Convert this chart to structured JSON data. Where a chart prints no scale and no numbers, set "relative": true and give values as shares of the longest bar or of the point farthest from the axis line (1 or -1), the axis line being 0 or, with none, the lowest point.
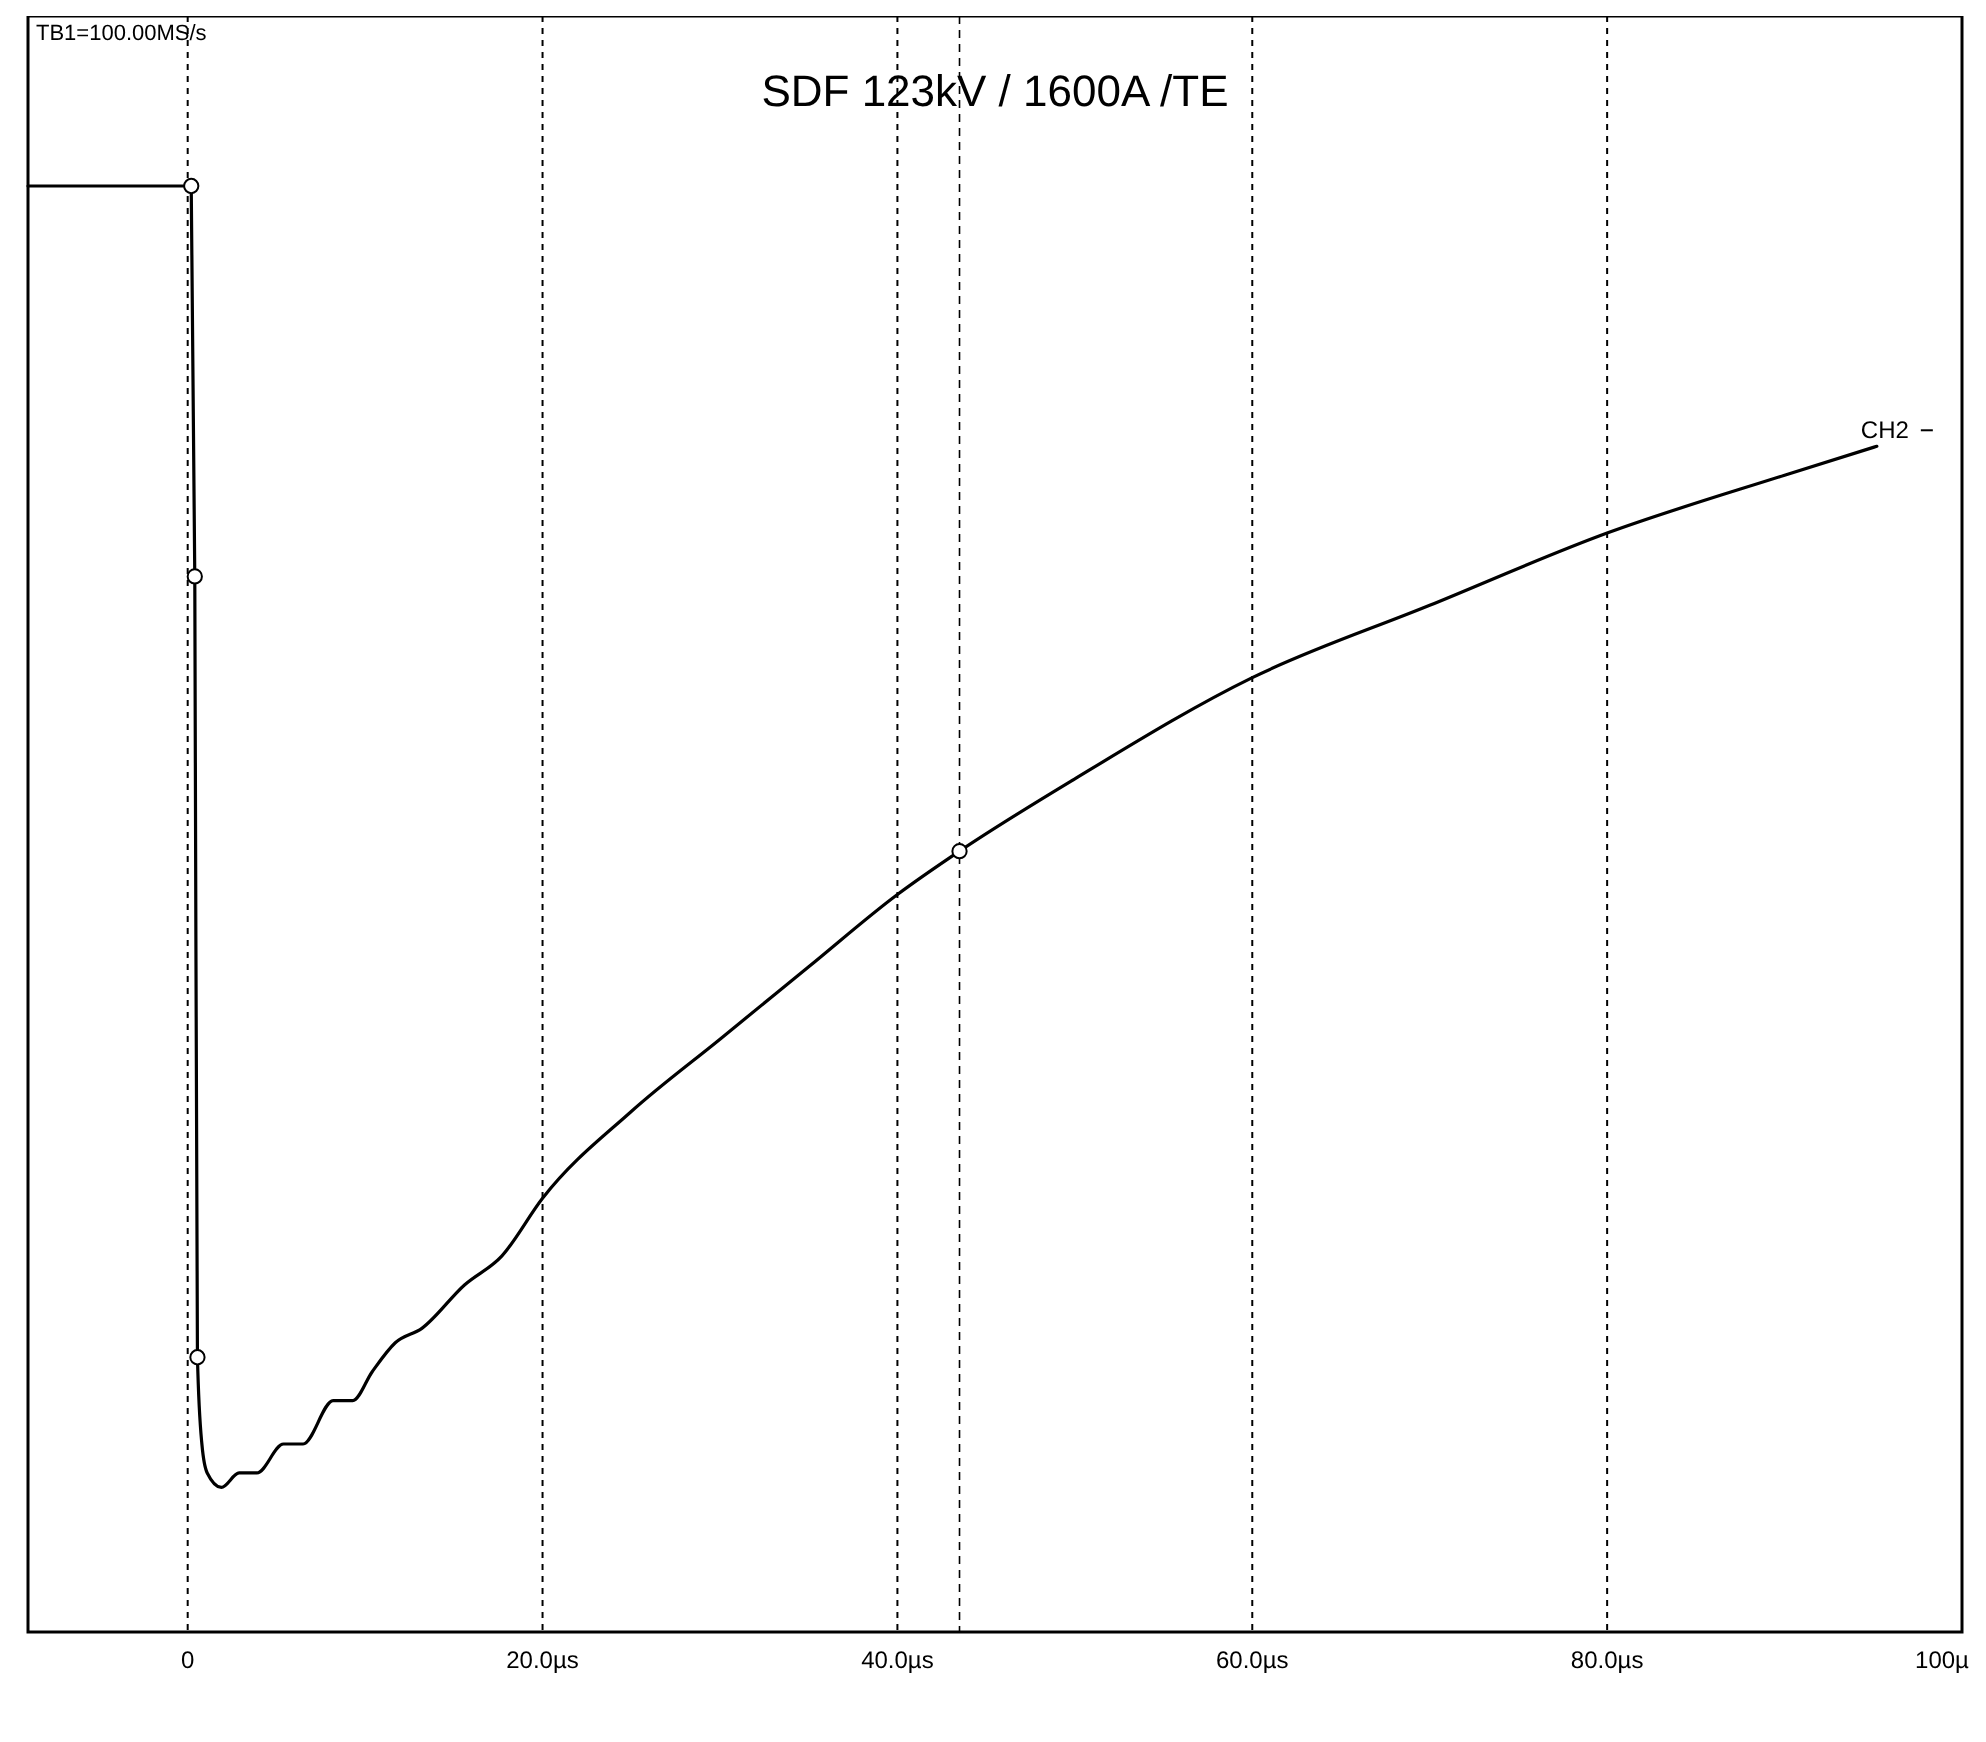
{
  "chart_data": {
    "type": "line",
    "title": "SDF 123kV / 1600A /TE",
    "annotations": [
      "TB1=100.00MS/s"
    ],
    "relative": true,
    "xlim": [
      -9,
      100
    ],
    "xticks": [
      0,
      {
        "value": 20,
        "label": "20.0µs"
      },
      {
        "value": 40,
        "label": "40.0µs"
      },
      {
        "value": 60,
        "label": "60.0µs"
      },
      {
        "value": 80,
        "label": "80.0µs"
      },
      {
        "value": 100,
        "label": "100µ"
      }
    ],
    "grid": "x",
    "line_style": "solid",
    "ref_lines": [
      {
        "axis": "x",
        "value": 43.5,
        "label": null,
        "color": "#000000",
        "line_style": "dashed"
      }
    ],
    "series": [
      {
        "name": "CH2",
        "color": "#000000",
        "marker": "none",
        "x": [
          -9,
          0.2,
          0.4,
          0.55,
          0.8,
          1.1,
          1.9,
          2.9,
          3.9,
          5.4,
          6.5,
          8.2,
          9.3,
          10.4,
          11.7,
          13.2,
          15.6,
          17.7,
          20,
          25,
          30,
          35,
          40,
          43.5,
          50,
          60,
          70,
          80,
          90,
          95.2
        ],
        "values": [
          1,
          1,
          0.73,
          0.19,
          0.13,
          0.11,
          0.1,
          0.11,
          0.11,
          0.13,
          0.13,
          0.16,
          0.16,
          0.18,
          0.2,
          0.21,
          0.24,
          0.26,
          0.3,
          0.36,
          0.41,
          0.46,
          0.51,
          0.54,
          0.59,
          0.66,
          0.71,
          0.76,
          0.8,
          0.82
        ]
      },
      {
        "type": "scatter",
        "color": "#000000",
        "marker": "circle",
        "x": [
          0.2,
          0.4,
          0.55,
          43.5
        ],
        "values": [
          1,
          0.73,
          0.19,
          0.54
        ]
      }
    ]
  }
}
